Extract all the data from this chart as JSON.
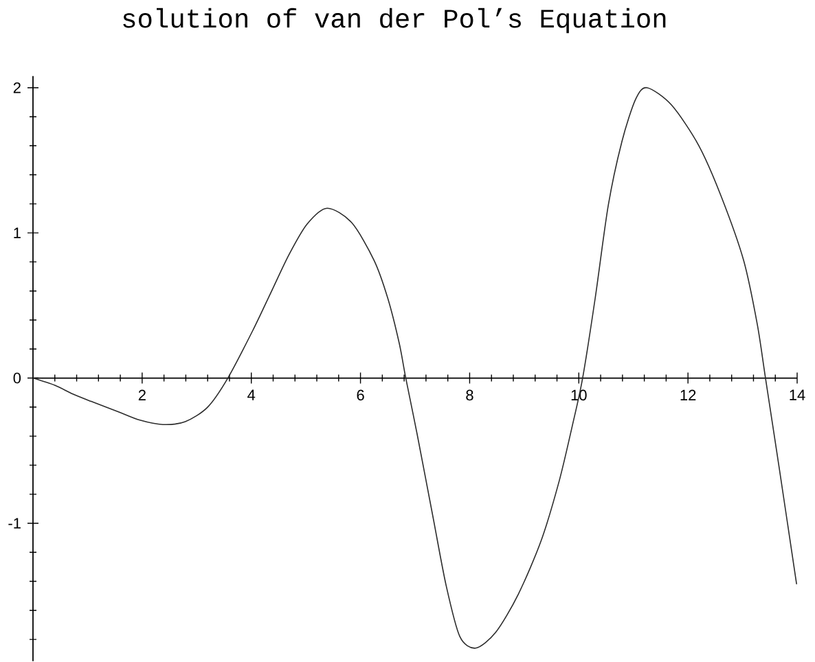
{
  "chart_data": {
    "type": "line",
    "title": "solution of van der Pol’s Equation",
    "x": [
      0,
      0.4,
      0.73,
      1.06,
      1.55,
      1.96,
      2.38,
      2.79,
      3.2,
      3.57,
      4.03,
      4.36,
      4.69,
      5.02,
      5.39,
      5.84,
      6.25,
      6.5,
      6.71,
      6.83,
      7.04,
      7.33,
      7.57,
      7.82,
      8.11,
      8.48,
      8.89,
      9.31,
      9.64,
      9.88,
      10.07,
      10.3,
      10.54,
      10.79,
      11.04,
      11.25,
      11.7,
      12.2,
      12.61,
      13.02,
      13.27,
      13.42,
      13.68,
      13.99
    ],
    "values": [
      0,
      -0.05,
      -0.11,
      -0.16,
      -0.23,
      -0.29,
      -0.32,
      -0.3,
      -0.2,
      0,
      0.33,
      0.59,
      0.85,
      1.06,
      1.17,
      1.07,
      0.81,
      0.55,
      0.24,
      0,
      -0.39,
      -0.96,
      -1.43,
      -1.78,
      -1.86,
      -1.75,
      -1.49,
      -1.12,
      -0.71,
      -0.33,
      0,
      0.55,
      1.19,
      1.63,
      1.92,
      2.0,
      1.88,
      1.6,
      1.25,
      0.81,
      0.37,
      0,
      -0.64,
      -1.42
    ],
    "color": "#2b2b2b",
    "xlim": [
      0,
      14
    ],
    "ylim": [
      -1.95,
      2.08
    ],
    "xticks": [
      2,
      4,
      6,
      8,
      10,
      12,
      14
    ],
    "yticks": [
      -1,
      0,
      1,
      2
    ],
    "marker": "none",
    "line_style": "solid"
  }
}
